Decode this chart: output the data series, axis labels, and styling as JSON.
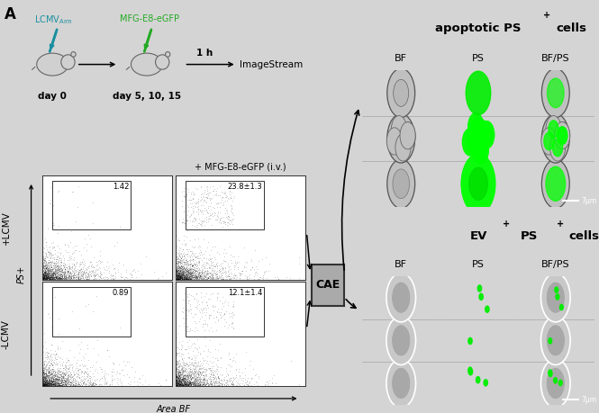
{
  "fig_width": 6.65,
  "fig_height": 4.59,
  "dpi": 100,
  "bg_color": "#d4d4d4",
  "white_bg": "#ffffff",
  "panel_label": "A",
  "lcmv_color": "#1a8fa0",
  "mfg_color": "#22aa22",
  "flow_labels": {
    "top_left": "1.42",
    "top_right": "23.8±1.3",
    "bot_left": "0.89",
    "bot_right": "12.1±1.4"
  },
  "plus_lcmv": "+LCMV",
  "minus_lcmv": "-LCMV",
  "x_axis_label": "Area BF",
  "y_axis_label": "PS+",
  "cae_label": "CAE",
  "mfg_iv_label": "+ MFG-E8-eGFP (i.v.)",
  "apoptotic_title": "apoptotic PS",
  "ev_title1": "EV",
  "ev_title2": "PS",
  "ev_title3": "cells",
  "col_labels": [
    "BF",
    "PS",
    "BF/PS"
  ],
  "scale_bar": "7μm",
  "day0_label": "day 0",
  "day5_label": "day 5, 10, 15",
  "arrow1h_label": "1 h",
  "imagestream_label": "ImageStream"
}
